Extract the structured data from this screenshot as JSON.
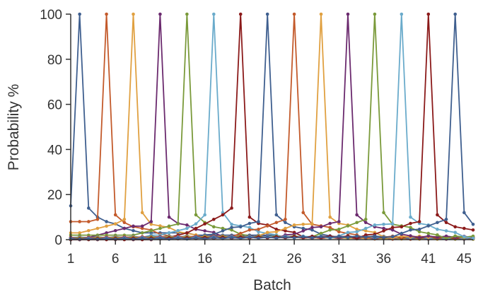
{
  "chart_data": {
    "type": "line",
    "title": "",
    "xlabel": "Batch",
    "ylabel": "Probability %",
    "xlim": [
      1,
      46
    ],
    "ylim": [
      0,
      100
    ],
    "xticks": [
      1,
      6,
      11,
      16,
      21,
      26,
      31,
      36,
      41,
      45
    ],
    "yticks": [
      0,
      20,
      40,
      60,
      80,
      100
    ],
    "grid": false,
    "legend": "none",
    "peak_value": 100,
    "series": [
      {
        "peak": 2,
        "base": [
          15,
          100,
          14,
          10,
          8,
          7,
          5,
          4,
          3,
          3,
          3,
          3,
          3,
          3,
          2,
          2,
          2,
          2,
          2,
          2,
          2,
          2,
          2,
          2,
          1,
          1,
          1,
          1,
          1,
          1,
          1,
          1,
          1,
          1,
          1,
          1,
          1,
          1,
          1,
          1,
          1,
          1,
          1,
          1,
          1,
          1
        ],
        "color": "#3f5f8f"
      },
      {
        "peak": 5,
        "base": [
          8,
          8,
          8,
          9
        ],
        "color": "#c35a2b"
      },
      {
        "peak": 8,
        "base": [
          3,
          3,
          4,
          5,
          6,
          7,
          9
        ],
        "color": "#e0a040"
      },
      {
        "peak": 11,
        "base": [
          0,
          0,
          1,
          2,
          3,
          4,
          5,
          6,
          6,
          8
        ],
        "color": "#6b2a6e"
      },
      {
        "peak": 14,
        "base": [
          2,
          2,
          2,
          2,
          2,
          2,
          2,
          2,
          3,
          4,
          5,
          6,
          7
        ],
        "color": "#7a9a3a"
      },
      {
        "peak": 17,
        "base": [
          1,
          1,
          1,
          1,
          1,
          1,
          1,
          1,
          1,
          2,
          2,
          3,
          4,
          5,
          7,
          11
        ],
        "color": "#6aabcb"
      },
      {
        "peak": 20,
        "base": [
          0,
          0,
          0,
          0,
          0,
          0,
          0,
          0,
          0,
          0,
          1,
          1,
          2,
          3,
          5,
          7,
          9,
          11,
          14
        ],
        "color": "#8b1a1a"
      },
      {
        "peak": 23,
        "color": "#3f5f8f"
      },
      {
        "peak": 26,
        "color": "#c35a2b"
      },
      {
        "peak": 29,
        "color": "#e0a040"
      },
      {
        "peak": 32,
        "color": "#6b2a6e"
      },
      {
        "peak": 35,
        "color": "#7a9a3a"
      },
      {
        "peak": 38,
        "color": "#6aabcb"
      },
      {
        "peak": 41,
        "color": "#8b1a1a"
      },
      {
        "peak": 44,
        "color": "#3f5f8f"
      }
    ]
  }
}
